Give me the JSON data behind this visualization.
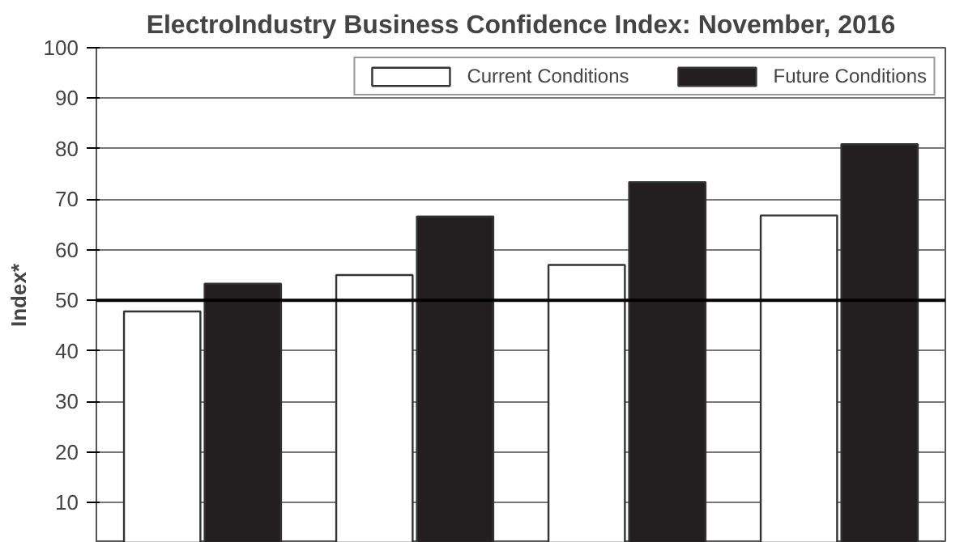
{
  "chart_data": {
    "type": "bar",
    "title": "ElectroIndustry Business Confidence Index: November, 2016",
    "ylabel": "Index*",
    "categories": [
      null,
      null,
      null,
      null
    ],
    "series": [
      {
        "name": "Current Conditions",
        "color": "#ffffff",
        "values": [
          47.8,
          55,
          57,
          66.8
        ]
      },
      {
        "name": "Future Conditions",
        "color": "#231f20",
        "values": [
          53.3,
          66.6,
          73.4,
          80.9
        ]
      }
    ],
    "ylim": [
      2,
      100
    ],
    "yticks": [
      10,
      20,
      30,
      40,
      50,
      60,
      70,
      80,
      90,
      100
    ],
    "grid": "y",
    "legend": "top right",
    "tick_labels": "y",
    "ref_lines": [
      {
        "axis": "y",
        "value": 50,
        "color": "#000000"
      }
    ]
  }
}
